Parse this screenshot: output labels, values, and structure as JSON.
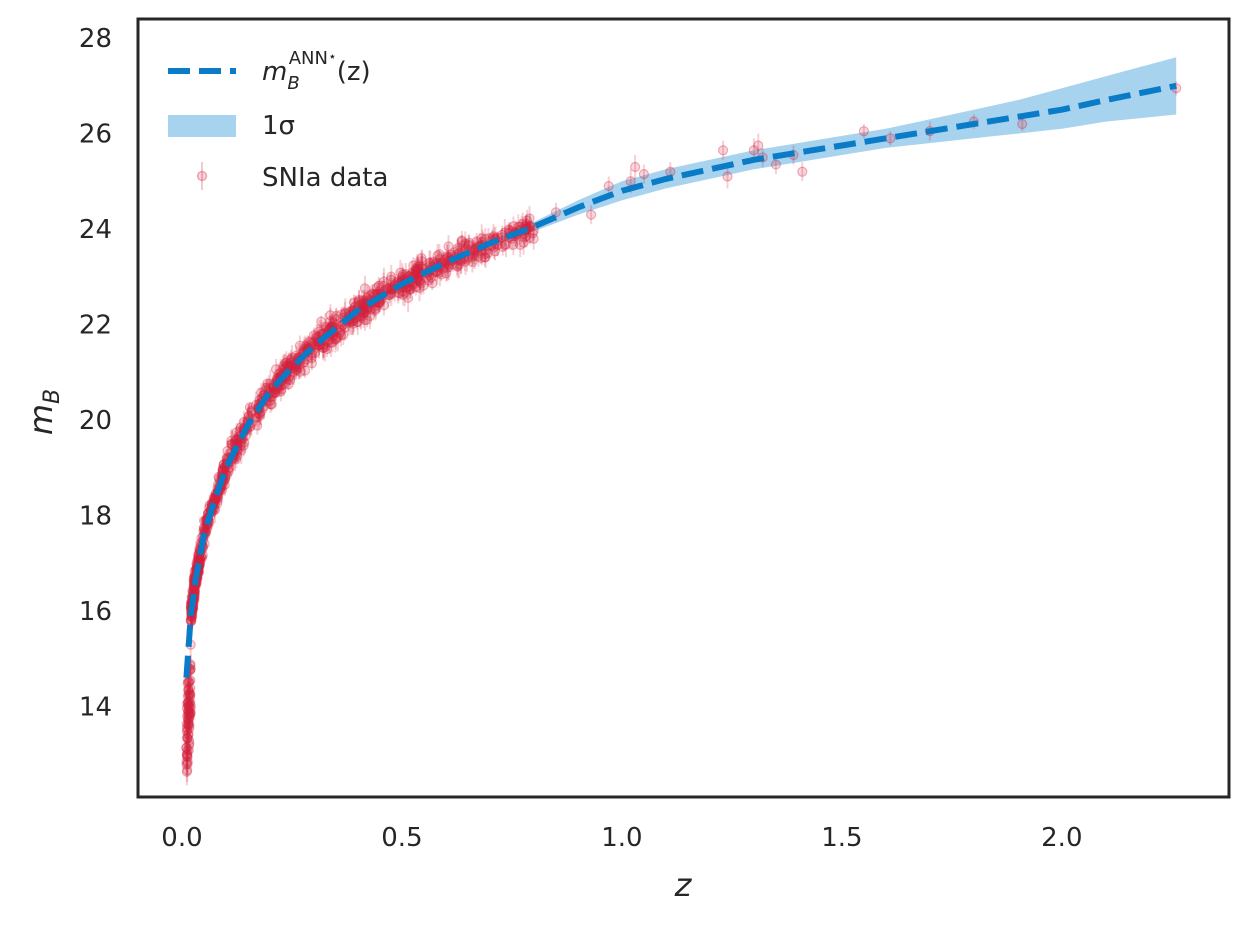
{
  "chart_data": {
    "type": "scatter",
    "title": "",
    "xlabel": "z",
    "ylabel": "m_B",
    "xlim": [
      -0.1,
      2.38
    ],
    "ylim": [
      12.1,
      28.4
    ],
    "xticks": [
      0.0,
      0.5,
      1.0,
      1.5,
      2.0
    ],
    "xtick_labels": [
      "0.0",
      "0.5",
      "1.0",
      "1.5",
      "2.0"
    ],
    "yticks": [
      14,
      16,
      18,
      20,
      22,
      24,
      26,
      28
    ],
    "ytick_labels": [
      "14",
      "16",
      "18",
      "20",
      "22",
      "24",
      "26",
      "28"
    ],
    "grid": false,
    "legend_position": "top-left",
    "legend": [
      {
        "label": "m_B^{ANN*}(z)",
        "base": "m",
        "sub": "B",
        "sup": "ANN",
        "star": "⋆",
        "tail": "(z)",
        "kind": "dashed-line"
      },
      {
        "label": "1σ",
        "text": "1σ",
        "kind": "band"
      },
      {
        "label": "SNIa data",
        "text": "SNIa data",
        "kind": "errorbar-points"
      }
    ],
    "colors": {
      "model": "#0a7bc6",
      "band": "#a7d3ee",
      "data": "#d4243f"
    },
    "series": [
      {
        "name": "m_B^{ANN*}(z)",
        "style": "dashed",
        "x": [
          0.01,
          0.02,
          0.03,
          0.05,
          0.07,
          0.1,
          0.15,
          0.2,
          0.25,
          0.3,
          0.4,
          0.5,
          0.6,
          0.7,
          0.8,
          0.9,
          1.0,
          1.1,
          1.2,
          1.3,
          1.4,
          1.5,
          1.6,
          1.7,
          1.8,
          1.9,
          2.0,
          2.1,
          2.26
        ],
        "values": [
          14.6,
          15.9,
          16.6,
          17.6,
          18.2,
          19.0,
          19.9,
          20.6,
          21.1,
          21.55,
          22.3,
          22.85,
          23.3,
          23.7,
          24.05,
          24.45,
          24.8,
          25.05,
          25.25,
          25.45,
          25.6,
          25.75,
          25.9,
          26.05,
          26.2,
          26.35,
          26.5,
          26.7,
          27.0
        ]
      },
      {
        "name": "1σ",
        "type": "band",
        "x": [
          0.7,
          0.8,
          0.9,
          1.0,
          1.1,
          1.2,
          1.3,
          1.4,
          1.5,
          1.6,
          1.7,
          1.8,
          1.9,
          2.0,
          2.1,
          2.26
        ],
        "lower": [
          23.65,
          23.95,
          24.3,
          24.6,
          24.85,
          25.05,
          25.25,
          25.4,
          25.55,
          25.7,
          25.8,
          25.9,
          26.0,
          26.1,
          26.25,
          26.4
        ],
        "upper": [
          23.75,
          24.15,
          24.6,
          25.0,
          25.25,
          25.45,
          25.65,
          25.8,
          25.95,
          26.1,
          26.3,
          26.5,
          26.7,
          26.95,
          27.2,
          27.6
        ]
      }
    ],
    "data_points": {
      "name": "SNIa data",
      "count_approx": 1040,
      "high_z_points": [
        {
          "x": 0.85,
          "y": 24.35,
          "err": 0.2
        },
        {
          "x": 0.93,
          "y": 24.3,
          "err": 0.2
        },
        {
          "x": 0.97,
          "y": 24.9,
          "err": 0.2
        },
        {
          "x": 1.02,
          "y": 25.0,
          "err": 0.25
        },
        {
          "x": 1.03,
          "y": 25.3,
          "err": 0.25
        },
        {
          "x": 1.05,
          "y": 25.15,
          "err": 0.2
        },
        {
          "x": 1.11,
          "y": 25.2,
          "err": 0.2
        },
        {
          "x": 1.23,
          "y": 25.65,
          "err": 0.2
        },
        {
          "x": 1.24,
          "y": 25.1,
          "err": 0.25
        },
        {
          "x": 1.3,
          "y": 25.65,
          "err": 0.25
        },
        {
          "x": 1.31,
          "y": 25.75,
          "err": 0.25
        },
        {
          "x": 1.32,
          "y": 25.5,
          "err": 0.2
        },
        {
          "x": 1.35,
          "y": 25.35,
          "err": 0.2
        },
        {
          "x": 1.39,
          "y": 25.55,
          "err": 0.2
        },
        {
          "x": 1.41,
          "y": 25.2,
          "err": 0.2
        },
        {
          "x": 1.55,
          "y": 26.05,
          "err": 0.15
        },
        {
          "x": 1.61,
          "y": 25.9,
          "err": 0.15
        },
        {
          "x": 1.7,
          "y": 26.05,
          "err": 0.2
        },
        {
          "x": 1.8,
          "y": 26.25,
          "err": 0.15
        },
        {
          "x": 1.91,
          "y": 26.2,
          "err": 0.15
        },
        {
          "x": 2.26,
          "y": 26.95,
          "err": 0.15
        }
      ]
    }
  }
}
